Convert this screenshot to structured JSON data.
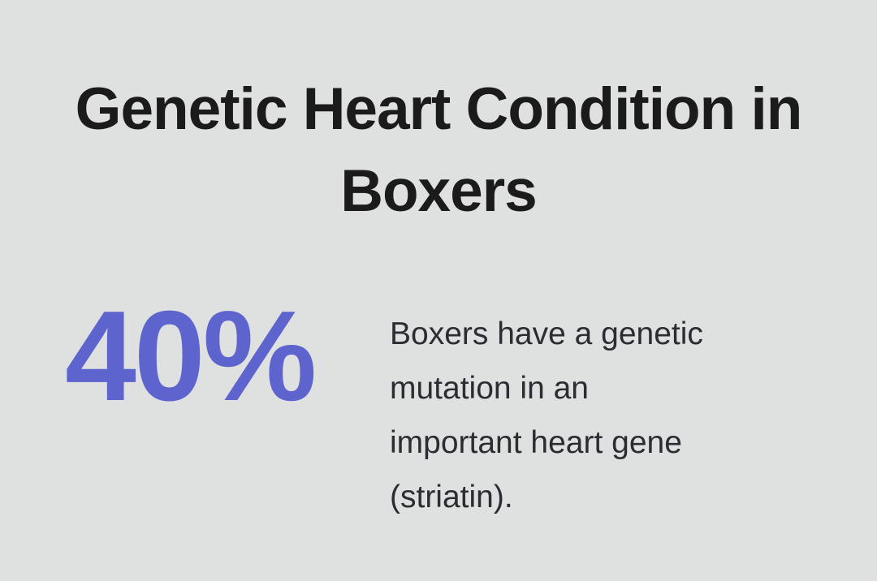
{
  "theme": {
    "background_color": "#dfe0e0",
    "title_color": "#1b1b1b",
    "accent_color": "#5e64cd",
    "body_text_color": "#2c2c33"
  },
  "infographic": {
    "title": "Genetic Heart Condition in Boxers",
    "title_lines": {
      "line1": "Genetic Heart Condition in",
      "line2": "Boxers"
    },
    "stat": {
      "value": "40%",
      "description": "Boxers have a genetic mutation in an important heart gene (striatin).",
      "description_lines": {
        "line1": "Boxers have a genetic",
        "line2": "mutation in an",
        "line3": "important heart gene",
        "line4": "(striatin)."
      }
    }
  }
}
